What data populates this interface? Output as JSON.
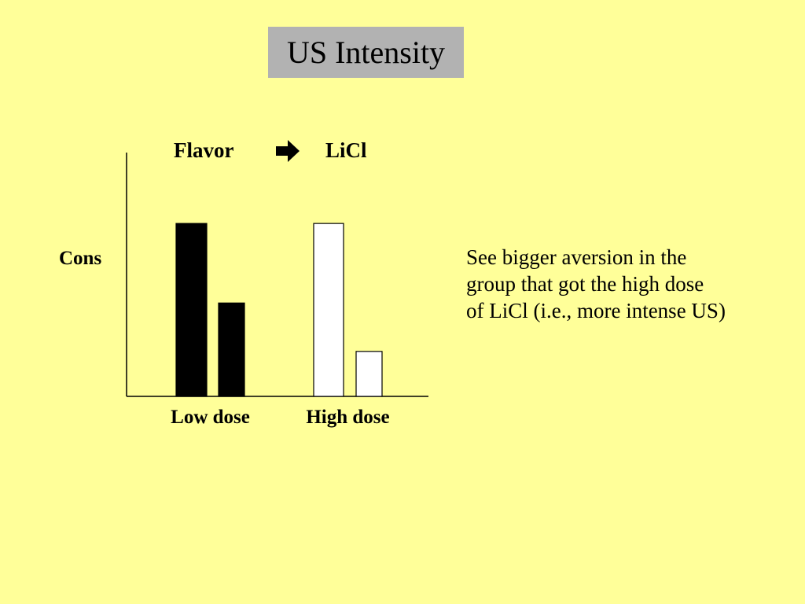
{
  "slide": {
    "title": "US Intensity",
    "paradigm": {
      "from": "Flavor",
      "arrow_icon": "right-arrow-icon",
      "to": "LiCl"
    },
    "note": "See bigger aversion in the group that got the high dose of LiCl (i.e., more intense US)"
  },
  "chart_data": {
    "type": "bar",
    "title": "",
    "ylabel": "Cons",
    "xlabel": "",
    "categories": [
      "Low dose",
      "High dose"
    ],
    "series": [
      {
        "values": [
          100,
          100
        ]
      },
      {
        "values": [
          54,
          26
        ]
      }
    ],
    "bar_colors": [
      [
        "#000000",
        "#000000"
      ],
      [
        "#ffffff",
        "#ffffff"
      ]
    ],
    "ylim": [
      0,
      141
    ],
    "grid": false,
    "legend": "none",
    "y_ticks": "none"
  }
}
